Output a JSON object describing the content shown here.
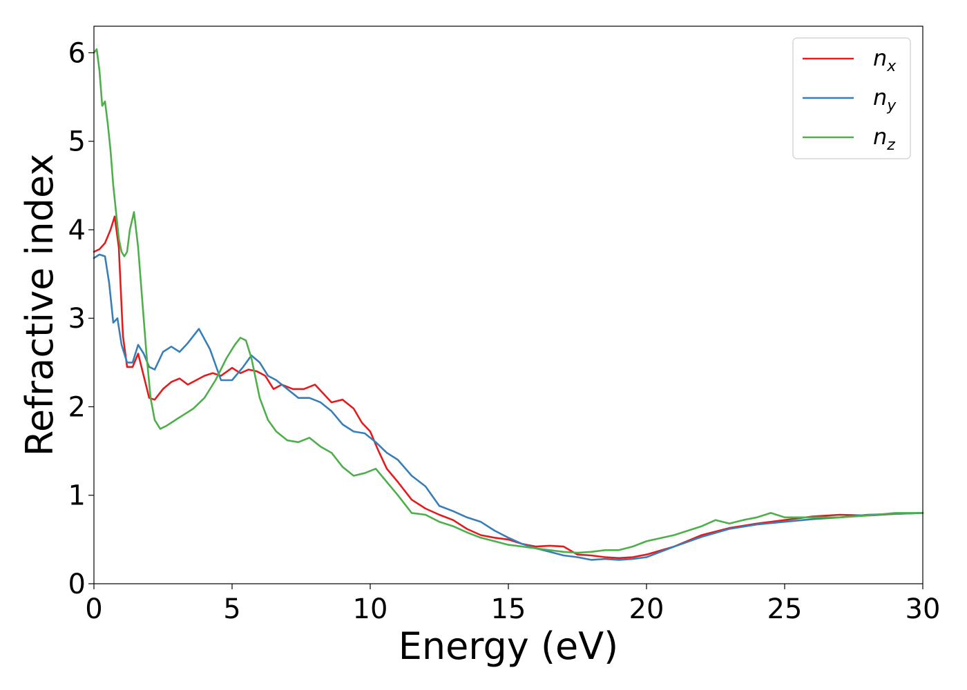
{
  "chart_data": {
    "type": "line",
    "title": "",
    "xlabel": "Energy (eV)",
    "ylabel": "Refractive index",
    "xlim": [
      0,
      30
    ],
    "ylim": [
      0,
      6.3
    ],
    "xticks": [
      0,
      5,
      10,
      15,
      20,
      25,
      30
    ],
    "yticks": [
      0,
      1,
      2,
      3,
      4,
      5,
      6
    ],
    "grid": false,
    "legend_position": "top-right",
    "series": [
      {
        "name": "n",
        "subscript": "x",
        "color": "#e41a1c",
        "x": [
          0,
          0.2,
          0.4,
          0.6,
          0.75,
          0.9,
          1.05,
          1.2,
          1.4,
          1.6,
          1.8,
          2.0,
          2.2,
          2.5,
          2.8,
          3.1,
          3.4,
          3.7,
          4.0,
          4.3,
          4.6,
          5.0,
          5.3,
          5.6,
          5.9,
          6.2,
          6.5,
          6.8,
          7.2,
          7.6,
          8.0,
          8.3,
          8.6,
          9.0,
          9.4,
          9.7,
          10.0,
          10.3,
          10.6,
          11.0,
          11.5,
          12.0,
          12.5,
          13.0,
          13.5,
          14.0,
          14.5,
          15.0,
          15.5,
          16.0,
          16.5,
          17.0,
          17.5,
          18.0,
          18.5,
          19.0,
          19.5,
          20.0,
          21.0,
          22.0,
          23.0,
          24.0,
          25.0,
          26.0,
          27.0,
          28.0,
          29.0,
          30.0
        ],
        "y": [
          3.75,
          3.78,
          3.85,
          4.0,
          4.15,
          3.8,
          2.8,
          2.45,
          2.45,
          2.6,
          2.35,
          2.1,
          2.08,
          2.2,
          2.28,
          2.32,
          2.25,
          2.3,
          2.35,
          2.38,
          2.35,
          2.44,
          2.38,
          2.42,
          2.4,
          2.35,
          2.2,
          2.25,
          2.2,
          2.2,
          2.25,
          2.15,
          2.05,
          2.08,
          1.98,
          1.82,
          1.72,
          1.5,
          1.3,
          1.15,
          0.95,
          0.85,
          0.78,
          0.72,
          0.62,
          0.55,
          0.52,
          0.5,
          0.45,
          0.42,
          0.43,
          0.42,
          0.33,
          0.32,
          0.3,
          0.29,
          0.3,
          0.33,
          0.42,
          0.55,
          0.63,
          0.68,
          0.72,
          0.76,
          0.78,
          0.77,
          0.79,
          0.8
        ]
      },
      {
        "name": "n",
        "subscript": "y",
        "color": "#377eb8",
        "x": [
          0,
          0.2,
          0.4,
          0.55,
          0.7,
          0.85,
          1.0,
          1.2,
          1.4,
          1.6,
          1.8,
          2.0,
          2.2,
          2.5,
          2.8,
          3.1,
          3.4,
          3.8,
          4.2,
          4.6,
          5.0,
          5.4,
          5.7,
          6.0,
          6.3,
          6.6,
          7.0,
          7.4,
          7.8,
          8.2,
          8.6,
          9.0,
          9.4,
          9.8,
          10.2,
          10.6,
          11.0,
          11.5,
          12.0,
          12.5,
          13.0,
          13.5,
          14.0,
          14.5,
          15.0,
          15.5,
          16.0,
          16.5,
          17.0,
          17.5,
          18.0,
          18.5,
          19.0,
          19.5,
          20.0,
          21.0,
          22.0,
          23.0,
          24.0,
          25.0,
          26.0,
          27.0,
          28.0,
          29.0,
          30.0
        ],
        "y": [
          3.68,
          3.72,
          3.7,
          3.4,
          2.95,
          3.0,
          2.7,
          2.5,
          2.5,
          2.7,
          2.6,
          2.45,
          2.42,
          2.62,
          2.68,
          2.62,
          2.72,
          2.88,
          2.65,
          2.3,
          2.3,
          2.45,
          2.58,
          2.5,
          2.35,
          2.3,
          2.2,
          2.1,
          2.1,
          2.05,
          1.95,
          1.8,
          1.72,
          1.7,
          1.6,
          1.48,
          1.4,
          1.22,
          1.1,
          0.88,
          0.82,
          0.75,
          0.7,
          0.6,
          0.52,
          0.45,
          0.4,
          0.36,
          0.32,
          0.3,
          0.27,
          0.28,
          0.27,
          0.28,
          0.3,
          0.42,
          0.53,
          0.62,
          0.67,
          0.7,
          0.73,
          0.75,
          0.78,
          0.79,
          0.8
        ]
      },
      {
        "name": "n",
        "subscript": "z",
        "color": "#4daf4a",
        "x": [
          0,
          0.1,
          0.2,
          0.3,
          0.4,
          0.5,
          0.6,
          0.7,
          0.8,
          0.9,
          1.0,
          1.1,
          1.2,
          1.3,
          1.45,
          1.6,
          1.75,
          1.9,
          2.05,
          2.2,
          2.4,
          2.6,
          2.8,
          3.0,
          3.3,
          3.6,
          4.0,
          4.4,
          4.8,
          5.1,
          5.3,
          5.5,
          5.7,
          6.0,
          6.3,
          6.6,
          7.0,
          7.4,
          7.8,
          8.2,
          8.6,
          9.0,
          9.4,
          9.8,
          10.2,
          10.6,
          11.0,
          11.5,
          12.0,
          12.5,
          13.0,
          13.5,
          14.0,
          14.5,
          15.0,
          15.5,
          16.0,
          16.5,
          17.0,
          17.5,
          18.0,
          18.5,
          19.0,
          19.5,
          20.0,
          21.0,
          22.0,
          22.5,
          23.0,
          23.5,
          24.0,
          24.5,
          25.0,
          26.0,
          27.0,
          28.0,
          29.0,
          30.0
        ],
        "y": [
          6.0,
          6.04,
          5.8,
          5.4,
          5.45,
          5.2,
          4.9,
          4.5,
          4.2,
          3.9,
          3.75,
          3.7,
          3.75,
          4.0,
          4.2,
          3.8,
          3.2,
          2.6,
          2.1,
          1.85,
          1.75,
          1.78,
          1.82,
          1.86,
          1.92,
          1.98,
          2.1,
          2.3,
          2.55,
          2.7,
          2.78,
          2.75,
          2.55,
          2.1,
          1.85,
          1.72,
          1.62,
          1.6,
          1.65,
          1.55,
          1.48,
          1.32,
          1.22,
          1.25,
          1.3,
          1.15,
          1.0,
          0.8,
          0.78,
          0.7,
          0.65,
          0.58,
          0.52,
          0.48,
          0.44,
          0.42,
          0.4,
          0.38,
          0.36,
          0.35,
          0.36,
          0.38,
          0.38,
          0.42,
          0.48,
          0.55,
          0.65,
          0.72,
          0.68,
          0.72,
          0.75,
          0.8,
          0.75,
          0.75,
          0.75,
          0.77,
          0.8,
          0.8
        ]
      }
    ]
  }
}
